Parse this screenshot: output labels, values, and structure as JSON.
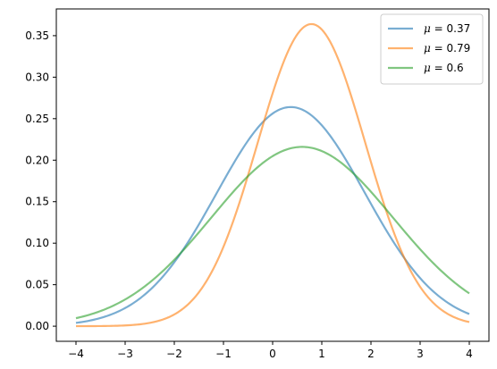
{
  "chart_data": {
    "type": "line",
    "x_range": [
      -4,
      4
    ],
    "xlim": [
      -4.4,
      4.4
    ],
    "ylim": [
      -0.0182,
      0.3822
    ],
    "x_ticks": [
      -4,
      -3,
      -2,
      -1,
      0,
      1,
      2,
      3,
      4
    ],
    "y_ticks": [
      0.0,
      0.05,
      0.1,
      0.15,
      0.2,
      0.25,
      0.3,
      0.35
    ],
    "x_tick_labels": [
      "−4",
      "−3",
      "−2",
      "−1",
      "0",
      "1",
      "2",
      "3",
      "4"
    ],
    "y_tick_labels": [
      "0.00",
      "0.05",
      "0.10",
      "0.15",
      "0.20",
      "0.25",
      "0.30",
      "0.35"
    ],
    "grid": false,
    "legend_position": "top-right",
    "series": [
      {
        "name_symbol": "μ",
        "name_value": " = 0.37",
        "mu": 0.37,
        "sigma": 1.51,
        "peak": 0.264,
        "color": "#1f77b4"
      },
      {
        "name_symbol": "μ",
        "name_value": " = 0.79",
        "mu": 0.79,
        "sigma": 1.095,
        "peak": 0.364,
        "color": "#ff7f0e"
      },
      {
        "name_symbol": "μ",
        "name_value": " = 0.6",
        "mu": 0.6,
        "sigma": 1.845,
        "peak": 0.216,
        "color": "#2ca02c"
      }
    ],
    "line_alpha": 0.6
  }
}
